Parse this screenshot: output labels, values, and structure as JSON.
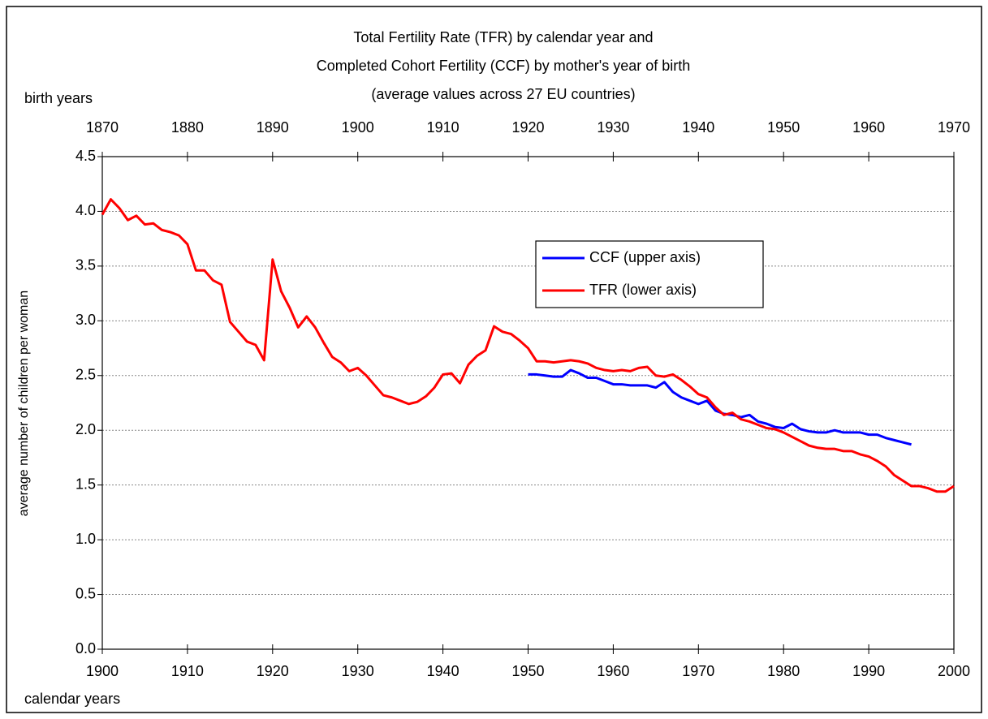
{
  "chart_data": {
    "type": "line",
    "title": [
      "Total Fertility Rate (TFR) by calendar year and",
      "Completed Cohort Fertility (CCF) by mother's year of birth",
      "(average values across 27 EU countries)"
    ],
    "x_label": "calendar years",
    "x2_label": "birth years",
    "y_label": "average number of children per woman",
    "xlim": [
      1900,
      2000
    ],
    "xticks": [
      1900,
      1910,
      1920,
      1930,
      1940,
      1950,
      1960,
      1970,
      1980,
      1990,
      2000
    ],
    "x2lim": [
      1870,
      1970
    ],
    "x2ticks": [
      1870,
      1880,
      1890,
      1900,
      1910,
      1920,
      1930,
      1940,
      1950,
      1960,
      1970
    ],
    "ylim": [
      0,
      4.5
    ],
    "yticks": [
      {
        "value": 0,
        "label": "0.0"
      },
      {
        "value": 0.5,
        "label": "0.5"
      },
      {
        "value": 1,
        "label": "1.0"
      },
      {
        "value": 1.5,
        "label": "1.5"
      },
      {
        "value": 2,
        "label": "2.0"
      },
      {
        "value": 2.5,
        "label": "2.5"
      },
      {
        "value": 3,
        "label": "3.0"
      },
      {
        "value": 3.5,
        "label": "3.5"
      },
      {
        "value": 4,
        "label": "4.0"
      },
      {
        "value": 4.5,
        "label": "4.5"
      }
    ],
    "grid": true,
    "series": [
      {
        "name": "CCF (upper axis)",
        "color": "#0000ff",
        "axis": "x2",
        "x": [
          1920,
          1921,
          1922,
          1923,
          1924,
          1925,
          1926,
          1927,
          1928,
          1929,
          1930,
          1931,
          1932,
          1933,
          1934,
          1935,
          1936,
          1937,
          1938,
          1939,
          1940,
          1941,
          1942,
          1943,
          1944,
          1945,
          1946,
          1947,
          1948,
          1949,
          1950,
          1951,
          1952,
          1953,
          1954,
          1955,
          1956,
          1957,
          1958,
          1959,
          1960,
          1961,
          1962,
          1963,
          1964,
          1965
        ],
        "values": [
          2.51,
          2.51,
          2.5,
          2.49,
          2.49,
          2.55,
          2.52,
          2.48,
          2.48,
          2.45,
          2.42,
          2.42,
          2.41,
          2.41,
          2.41,
          2.39,
          2.44,
          2.35,
          2.3,
          2.27,
          2.24,
          2.27,
          2.18,
          2.15,
          2.14,
          2.12,
          2.14,
          2.08,
          2.06,
          2.03,
          2.02,
          2.06,
          2.01,
          1.99,
          1.98,
          1.98,
          2.0,
          1.98,
          1.98,
          1.98,
          1.96,
          1.96,
          1.93,
          1.91,
          1.89,
          1.87
        ]
      },
      {
        "name": "TFR (lower axis)",
        "color": "#ff0000",
        "axis": "x",
        "x": [
          1900,
          1901,
          1902,
          1903,
          1904,
          1905,
          1906,
          1907,
          1908,
          1909,
          1910,
          1911,
          1912,
          1913,
          1914,
          1915,
          1916,
          1917,
          1918,
          1919,
          1920,
          1921,
          1922,
          1923,
          1924,
          1925,
          1926,
          1927,
          1928,
          1929,
          1930,
          1931,
          1932,
          1933,
          1934,
          1935,
          1936,
          1937,
          1938,
          1939,
          1940,
          1941,
          1942,
          1943,
          1944,
          1945,
          1946,
          1947,
          1948,
          1949,
          1950,
          1951,
          1952,
          1953,
          1954,
          1955,
          1956,
          1957,
          1958,
          1959,
          1960,
          1961,
          1962,
          1963,
          1964,
          1965,
          1966,
          1967,
          1968,
          1969,
          1970,
          1971,
          1972,
          1973,
          1974,
          1975,
          1976,
          1977,
          1978,
          1979,
          1980,
          1981,
          1982,
          1983,
          1984,
          1985,
          1986,
          1987,
          1988,
          1989,
          1990,
          1991,
          1992,
          1993,
          1994,
          1995,
          1996,
          1997,
          1998,
          1999,
          2000
        ],
        "values": [
          3.97,
          4.11,
          4.03,
          3.92,
          3.96,
          3.88,
          3.89,
          3.83,
          3.81,
          3.78,
          3.7,
          3.46,
          3.46,
          3.37,
          3.33,
          2.99,
          2.9,
          2.81,
          2.78,
          2.64,
          3.56,
          3.27,
          3.12,
          2.94,
          3.04,
          2.94,
          2.8,
          2.67,
          2.62,
          2.54,
          2.57,
          2.5,
          2.41,
          2.32,
          2.3,
          2.27,
          2.24,
          2.26,
          2.31,
          2.39,
          2.51,
          2.52,
          2.43,
          2.6,
          2.68,
          2.73,
          2.95,
          2.9,
          2.88,
          2.82,
          2.75,
          2.63,
          2.63,
          2.62,
          2.63,
          2.64,
          2.63,
          2.61,
          2.57,
          2.55,
          2.54,
          2.55,
          2.54,
          2.57,
          2.58,
          2.5,
          2.49,
          2.51,
          2.46,
          2.4,
          2.33,
          2.3,
          2.21,
          2.14,
          2.16,
          2.1,
          2.08,
          2.05,
          2.02,
          2.01,
          1.98,
          1.94,
          1.9,
          1.86,
          1.84,
          1.83,
          1.83,
          1.81,
          1.81,
          1.78,
          1.76,
          1.72,
          1.67,
          1.59,
          1.54,
          1.49,
          1.49,
          1.47,
          1.44,
          1.44,
          1.49
        ]
      }
    ]
  }
}
